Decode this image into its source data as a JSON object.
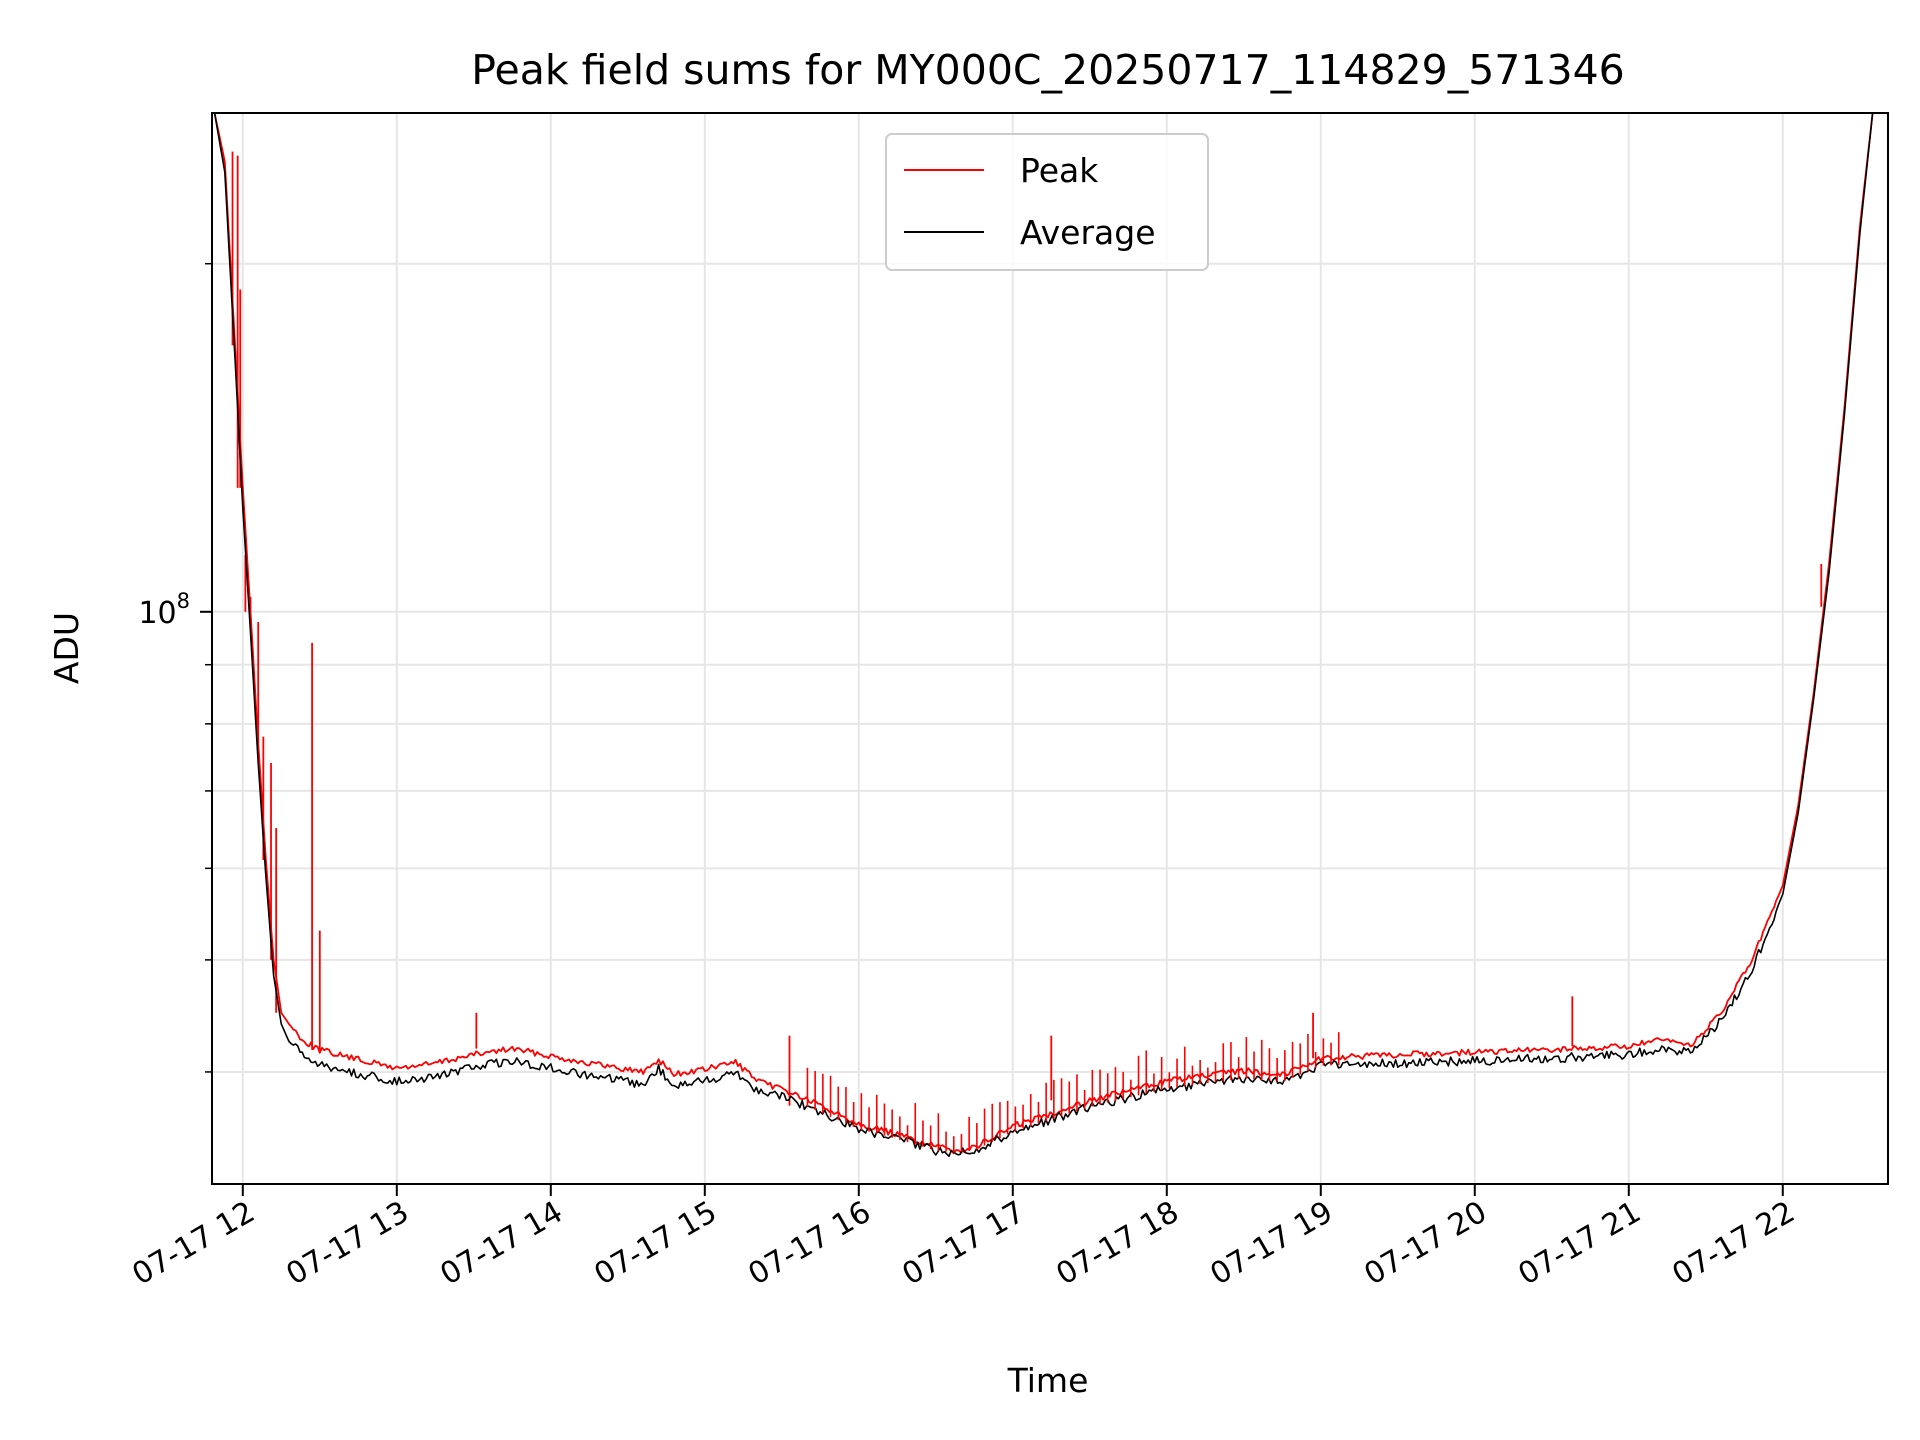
{
  "chart_data": {
    "type": "line",
    "title": "Peak field sums for MY000C_20250717_114829_571346",
    "xlabel": "Time",
    "ylabel": "ADU",
    "yscale": "log",
    "xlim": [
      "2025-07-17T11:48",
      "2025-07-17T22:41"
    ],
    "ylim": [
      32000000,
      270000000
    ],
    "grid": true,
    "legend_position": "top-center",
    "x_tick_labels": [
      "07-17 12",
      "07-17 13",
      "07-17 14",
      "07-17 15",
      "07-17 16",
      "07-17 17",
      "07-17 18",
      "07-17 19",
      "07-17 20",
      "07-17 21",
      "07-17 22"
    ],
    "x_tick_values": [
      "2025-07-17T12:00",
      "2025-07-17T13:00",
      "2025-07-17T14:00",
      "2025-07-17T15:00",
      "2025-07-17T16:00",
      "2025-07-17T17:00",
      "2025-07-17T18:00",
      "2025-07-17T19:00",
      "2025-07-17T20:00",
      "2025-07-17T21:00",
      "2025-07-17T22:00"
    ],
    "y_tick_labels": [
      "10^8"
    ],
    "y_tick_values": [
      100000000
    ],
    "series": [
      {
        "name": "Peak",
        "color": "#ff0000",
        "x": [
          "2025-07-17T11:49",
          "2025-07-17T11:53",
          "2025-07-17T11:57",
          "2025-07-17T12:00",
          "2025-07-17T12:03",
          "2025-07-17T12:06",
          "2025-07-17T12:09",
          "2025-07-17T12:12",
          "2025-07-17T12:15",
          "2025-07-17T12:18",
          "2025-07-17T12:24",
          "2025-07-17T12:30",
          "2025-07-17T12:45",
          "2025-07-17T13:00",
          "2025-07-17T13:15",
          "2025-07-17T13:30",
          "2025-07-17T13:45",
          "2025-07-17T14:00",
          "2025-07-17T14:15",
          "2025-07-17T14:30",
          "2025-07-17T14:36",
          "2025-07-17T14:42",
          "2025-07-17T14:48",
          "2025-07-17T15:00",
          "2025-07-17T15:12",
          "2025-07-17T15:21",
          "2025-07-17T15:30",
          "2025-07-17T15:45",
          "2025-07-17T16:00",
          "2025-07-17T16:15",
          "2025-07-17T16:30",
          "2025-07-17T16:36",
          "2025-07-17T16:45",
          "2025-07-17T17:00",
          "2025-07-17T17:30",
          "2025-07-17T18:00",
          "2025-07-17T18:30",
          "2025-07-17T18:45",
          "2025-07-17T19:00",
          "2025-07-17T19:30",
          "2025-07-17T20:00",
          "2025-07-17T20:30",
          "2025-07-17T21:00",
          "2025-07-17T21:12",
          "2025-07-17T21:24",
          "2025-07-17T21:30",
          "2025-07-17T21:36",
          "2025-07-17T21:48",
          "2025-07-17T22:00",
          "2025-07-17T22:06",
          "2025-07-17T22:12",
          "2025-07-17T22:18",
          "2025-07-17T22:24",
          "2025-07-17T22:30",
          "2025-07-17T22:35"
        ],
        "y": [
          270000000,
          245000000,
          170000000,
          128000000,
          100000000,
          77000000,
          61000000,
          50000000,
          45000000,
          44000000,
          42500000,
          41800000,
          41000000,
          40300000,
          40700000,
          41400000,
          41900000,
          41300000,
          40700000,
          40200000,
          40000000,
          41000000,
          39800000,
          40200000,
          40800000,
          39200000,
          38700000,
          37400000,
          36100000,
          35300000,
          34500000,
          34200000,
          34400000,
          35900000,
          37800000,
          39300000,
          40100000,
          39800000,
          41100000,
          41400000,
          41600000,
          41800000,
          42100000,
          42600000,
          42200000,
          43500000,
          45000000,
          50000000,
          58000000,
          68000000,
          85000000,
          110000000,
          150000000,
          215000000,
          270000000
        ],
        "spikes": [
          {
            "x": "2025-07-17T11:56",
            "y": 250000000
          },
          {
            "x": "2025-07-17T11:58",
            "y": 248000000
          },
          {
            "x": "2025-07-17T11:59",
            "y": 190000000
          },
          {
            "x": "2025-07-17T12:01",
            "y": 112000000
          },
          {
            "x": "2025-07-17T12:03",
            "y": 103000000
          },
          {
            "x": "2025-07-17T12:06",
            "y": 98000000
          },
          {
            "x": "2025-07-17T12:08",
            "y": 78000000
          },
          {
            "x": "2025-07-17T12:11",
            "y": 74000000
          },
          {
            "x": "2025-07-17T12:13",
            "y": 65000000
          },
          {
            "x": "2025-07-17T12:27",
            "y": 94000000
          },
          {
            "x": "2025-07-17T12:30",
            "y": 53000000
          },
          {
            "x": "2025-07-17T13:31",
            "y": 45000000
          },
          {
            "x": "2025-07-17T15:33",
            "y": 43000000
          },
          {
            "x": "2025-07-17T17:15",
            "y": 43000000
          },
          {
            "x": "2025-07-17T18:57",
            "y": 45000000
          },
          {
            "x": "2025-07-17T20:38",
            "y": 46500000
          },
          {
            "x": "2025-07-17T22:15",
            "y": 101000000
          }
        ]
      },
      {
        "name": "Average",
        "color": "#000000",
        "x": [
          "2025-07-17T11:49",
          "2025-07-17T11:53",
          "2025-07-17T11:57",
          "2025-07-17T12:00",
          "2025-07-17T12:03",
          "2025-07-17T12:06",
          "2025-07-17T12:09",
          "2025-07-17T12:12",
          "2025-07-17T12:15",
          "2025-07-17T12:18",
          "2025-07-17T12:24",
          "2025-07-17T12:30",
          "2025-07-17T12:45",
          "2025-07-17T13:00",
          "2025-07-17T13:15",
          "2025-07-17T13:30",
          "2025-07-17T13:45",
          "2025-07-17T14:00",
          "2025-07-17T14:15",
          "2025-07-17T14:30",
          "2025-07-17T14:36",
          "2025-07-17T14:42",
          "2025-07-17T14:48",
          "2025-07-17T15:00",
          "2025-07-17T15:12",
          "2025-07-17T15:21",
          "2025-07-17T15:30",
          "2025-07-17T15:45",
          "2025-07-17T16:00",
          "2025-07-17T16:15",
          "2025-07-17T16:30",
          "2025-07-17T16:36",
          "2025-07-17T16:45",
          "2025-07-17T17:00",
          "2025-07-17T17:30",
          "2025-07-17T18:00",
          "2025-07-17T18:30",
          "2025-07-17T18:45",
          "2025-07-17T19:00",
          "2025-07-17T19:30",
          "2025-07-17T20:00",
          "2025-07-17T20:30",
          "2025-07-17T21:00",
          "2025-07-17T21:12",
          "2025-07-17T21:24",
          "2025-07-17T21:30",
          "2025-07-17T21:36",
          "2025-07-17T21:48",
          "2025-07-17T22:00",
          "2025-07-17T22:06",
          "2025-07-17T22:12",
          "2025-07-17T22:18",
          "2025-07-17T22:24",
          "2025-07-17T22:30",
          "2025-07-17T22:35"
        ],
        "y": [
          270000000,
          240000000,
          165000000,
          123000000,
          96000000,
          74000000,
          59000000,
          48500000,
          44000000,
          42500000,
          41200000,
          40600000,
          39800000,
          39300000,
          39600000,
          40400000,
          40900000,
          40300000,
          39700000,
          39200000,
          39000000,
          40300000,
          38900000,
          39300000,
          40000000,
          38500000,
          38200000,
          36900000,
          35700000,
          35000000,
          34200000,
          34100000,
          34200000,
          35500000,
          37300000,
          38700000,
          39500000,
          39200000,
          40500000,
          40700000,
          40900000,
          41100000,
          41400000,
          41900000,
          41600000,
          42800000,
          44300000,
          49000000,
          57000000,
          67000000,
          84000000,
          108000000,
          148000000,
          212000000,
          270000000
        ]
      }
    ]
  }
}
